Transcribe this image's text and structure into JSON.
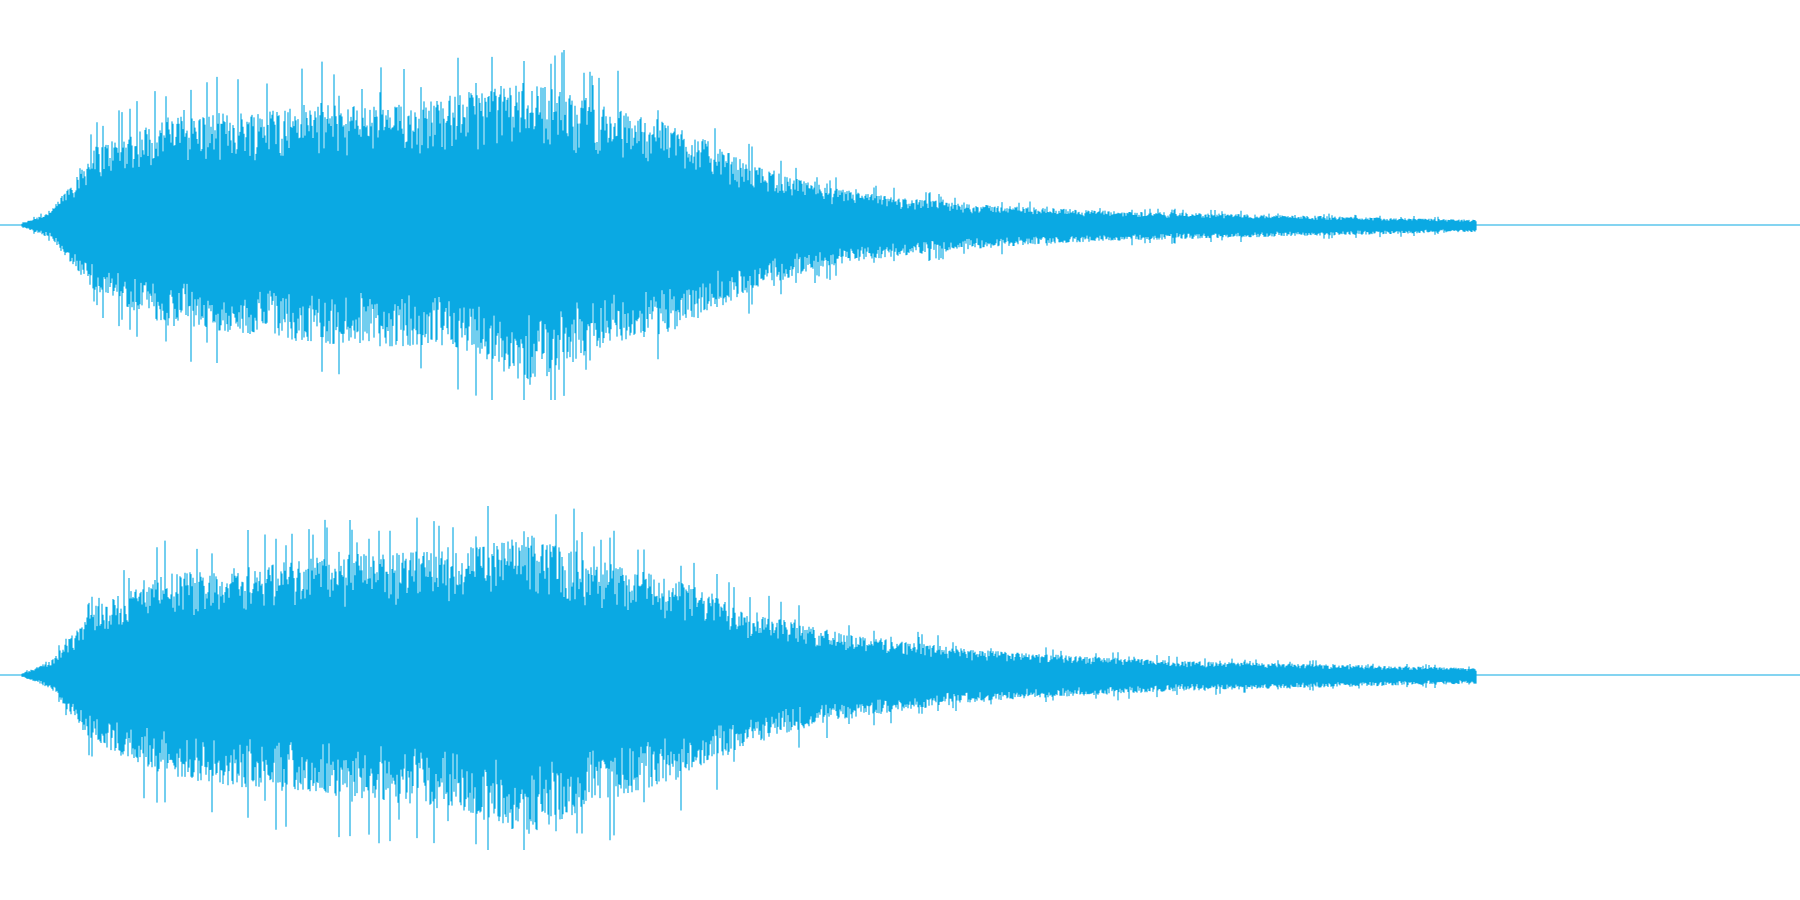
{
  "colors": {
    "background": "#ffffff",
    "waveform": "#0aa9e3"
  },
  "chart_data": {
    "type": "area",
    "title": "",
    "xlabel": "",
    "ylabel": "",
    "grid": false,
    "legend": "none",
    "channels": [
      {
        "x": [
          0,
          0.02,
          0.05,
          0.1,
          0.15,
          0.2,
          0.25,
          0.3,
          0.35,
          0.4,
          0.45,
          0.5,
          0.55,
          0.6,
          0.65,
          0.7,
          0.75,
          0.8,
          0.85,
          0.9,
          0.95,
          1.0
        ],
        "upper": [
          0.01,
          0.08,
          0.45,
          0.62,
          0.65,
          0.7,
          0.68,
          0.75,
          0.83,
          0.68,
          0.58,
          0.35,
          0.22,
          0.16,
          0.12,
          0.1,
          0.08,
          0.07,
          0.06,
          0.05,
          0.04,
          0.03
        ],
        "lower": [
          -0.01,
          -0.08,
          -0.38,
          -0.58,
          -0.62,
          -0.68,
          -0.7,
          -0.7,
          -0.92,
          -0.7,
          -0.6,
          -0.38,
          -0.24,
          -0.18,
          -0.14,
          -0.11,
          -0.09,
          -0.08,
          -0.07,
          -0.06,
          -0.05,
          -0.04
        ]
      },
      {
        "x": [
          0,
          0.02,
          0.05,
          0.1,
          0.15,
          0.2,
          0.25,
          0.3,
          0.35,
          0.4,
          0.45,
          0.5,
          0.55,
          0.6,
          0.65,
          0.7,
          0.75,
          0.8,
          0.85,
          0.9,
          0.95,
          1.0
        ],
        "upper": [
          0.01,
          0.08,
          0.4,
          0.58,
          0.62,
          0.68,
          0.7,
          0.72,
          0.8,
          0.65,
          0.55,
          0.38,
          0.26,
          0.2,
          0.15,
          0.12,
          0.1,
          0.08,
          0.07,
          0.06,
          0.05,
          0.04
        ],
        "lower": [
          -0.01,
          -0.08,
          -0.4,
          -0.58,
          -0.64,
          -0.68,
          -0.72,
          -0.78,
          -0.92,
          -0.72,
          -0.6,
          -0.4,
          -0.28,
          -0.21,
          -0.16,
          -0.13,
          -0.11,
          -0.09,
          -0.08,
          -0.07,
          -0.06,
          -0.05
        ]
      }
    ]
  }
}
